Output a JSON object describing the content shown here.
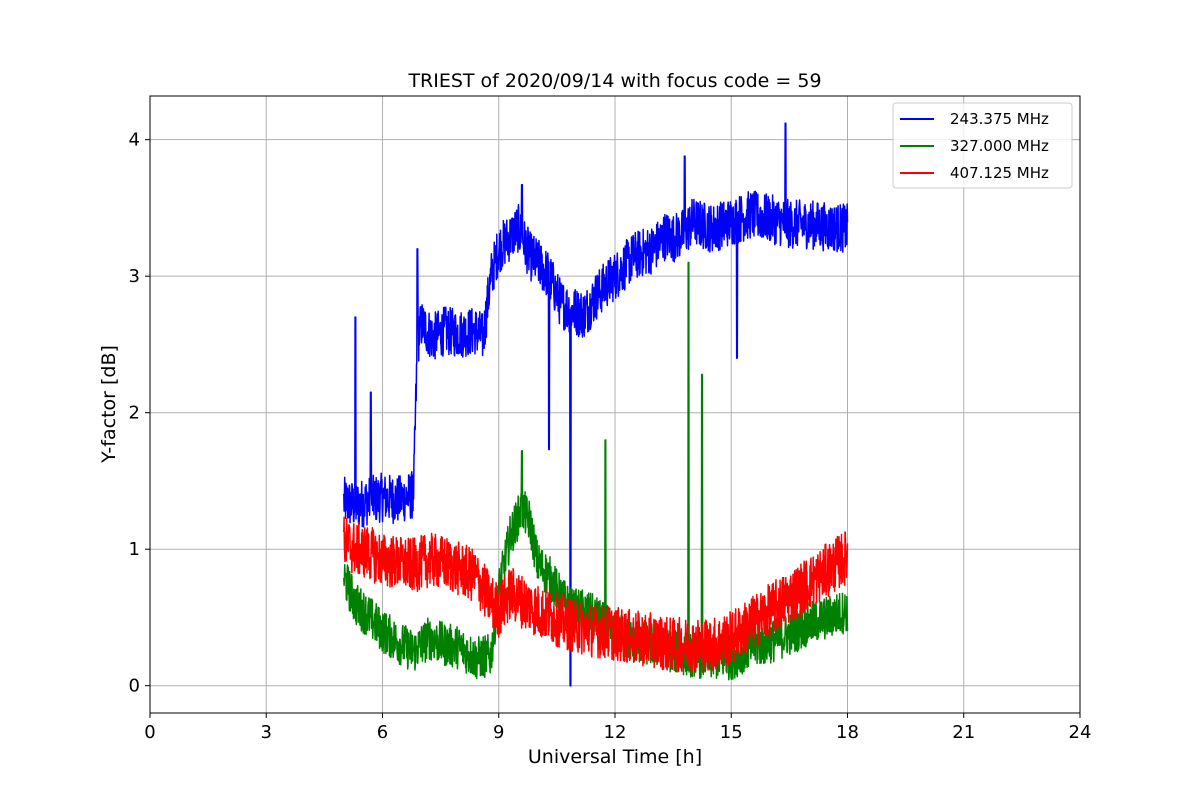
{
  "chart_data": {
    "type": "line",
    "title": "TRIEST of 2020/09/14 with focus code = 59",
    "xlabel": "Universal Time [h]",
    "ylabel": "Y-factor [dB]",
    "xlim": [
      0,
      24
    ],
    "ylim": [
      -0.2,
      4.32
    ],
    "xticks": [
      0,
      3,
      6,
      9,
      12,
      15,
      18,
      21,
      24
    ],
    "yticks": [
      0,
      1,
      2,
      3,
      4
    ],
    "grid": true,
    "legend_position": "top-right",
    "series": [
      {
        "name": "243.375 MHz",
        "color": "#0000ff",
        "x": [
          5.0,
          5.3,
          5.6,
          6.0,
          6.4,
          6.8,
          6.9,
          7.0,
          7.3,
          7.6,
          8.0,
          8.4,
          8.6,
          8.8,
          9.0,
          9.5,
          9.8,
          10.0,
          10.3,
          10.6,
          10.9,
          11.2,
          11.5,
          11.8,
          12.0,
          12.5,
          13.0,
          13.3,
          13.5,
          13.8,
          14.0,
          14.5,
          15.0,
          15.5,
          16.0,
          16.5,
          17.0,
          17.5,
          18.0
        ],
        "y": [
          1.35,
          1.32,
          1.35,
          1.38,
          1.36,
          1.4,
          2.5,
          2.65,
          2.55,
          2.6,
          2.58,
          2.6,
          2.55,
          3.0,
          3.2,
          3.35,
          3.15,
          3.1,
          3.0,
          2.8,
          2.75,
          2.72,
          2.85,
          2.95,
          3.0,
          3.15,
          3.2,
          3.3,
          3.28,
          3.32,
          3.4,
          3.35,
          3.4,
          3.45,
          3.42,
          3.38,
          3.38,
          3.36,
          3.35
        ]
      },
      {
        "name": "327.000 MHz",
        "color": "#008000",
        "x": [
          5.0,
          5.3,
          5.6,
          6.0,
          6.4,
          6.8,
          7.2,
          7.6,
          8.0,
          8.4,
          8.8,
          9.0,
          9.3,
          9.6,
          9.8,
          10.0,
          10.3,
          10.6,
          10.9,
          11.2,
          11.5,
          12.0,
          12.5,
          13.0,
          13.5,
          14.0,
          14.5,
          15.0,
          15.5,
          16.0,
          16.5,
          17.0,
          17.5,
          18.0
        ],
        "y": [
          0.8,
          0.6,
          0.52,
          0.4,
          0.32,
          0.25,
          0.35,
          0.3,
          0.28,
          0.2,
          0.22,
          0.7,
          1.1,
          1.3,
          1.2,
          0.9,
          0.8,
          0.65,
          0.55,
          0.55,
          0.5,
          0.38,
          0.32,
          0.3,
          0.25,
          0.22,
          0.2,
          0.2,
          0.28,
          0.32,
          0.38,
          0.45,
          0.5,
          0.55
        ]
      },
      {
        "name": "407.125 MHz",
        "color": "#ff0000",
        "x": [
          5.0,
          5.3,
          5.6,
          6.0,
          6.4,
          6.8,
          7.2,
          7.6,
          8.0,
          8.4,
          8.8,
          9.0,
          9.3,
          9.6,
          10.0,
          10.4,
          10.8,
          11.2,
          11.6,
          12.0,
          12.5,
          13.0,
          13.5,
          14.0,
          14.5,
          15.0,
          15.5,
          16.0,
          16.5,
          17.0,
          17.5,
          18.0
        ],
        "y": [
          1.05,
          1.0,
          0.98,
          0.92,
          0.9,
          0.88,
          0.92,
          0.9,
          0.85,
          0.8,
          0.62,
          0.55,
          0.68,
          0.62,
          0.55,
          0.5,
          0.45,
          0.42,
          0.4,
          0.38,
          0.35,
          0.33,
          0.3,
          0.3,
          0.3,
          0.35,
          0.45,
          0.55,
          0.65,
          0.75,
          0.85,
          0.95
        ]
      }
    ],
    "spikes": [
      {
        "series": 0,
        "x": 5.3,
        "y": 2.7
      },
      {
        "series": 0,
        "x": 5.7,
        "y": 2.15
      },
      {
        "series": 0,
        "x": 6.9,
        "y": 3.2
      },
      {
        "series": 0,
        "x": 9.6,
        "y": 3.67
      },
      {
        "series": 0,
        "x": 10.3,
        "y": 1.73
      },
      {
        "series": 0,
        "x": 10.85,
        "y": 0.0
      },
      {
        "series": 0,
        "x": 13.8,
        "y": 3.88
      },
      {
        "series": 0,
        "x": 15.15,
        "y": 2.4
      },
      {
        "series": 0,
        "x": 16.4,
        "y": 4.12
      },
      {
        "series": 1,
        "x": 11.75,
        "y": 1.8
      },
      {
        "series": 1,
        "x": 13.9,
        "y": 3.1
      },
      {
        "series": 1,
        "x": 14.25,
        "y": 2.28
      },
      {
        "series": 1,
        "x": 9.6,
        "y": 1.72
      }
    ]
  }
}
